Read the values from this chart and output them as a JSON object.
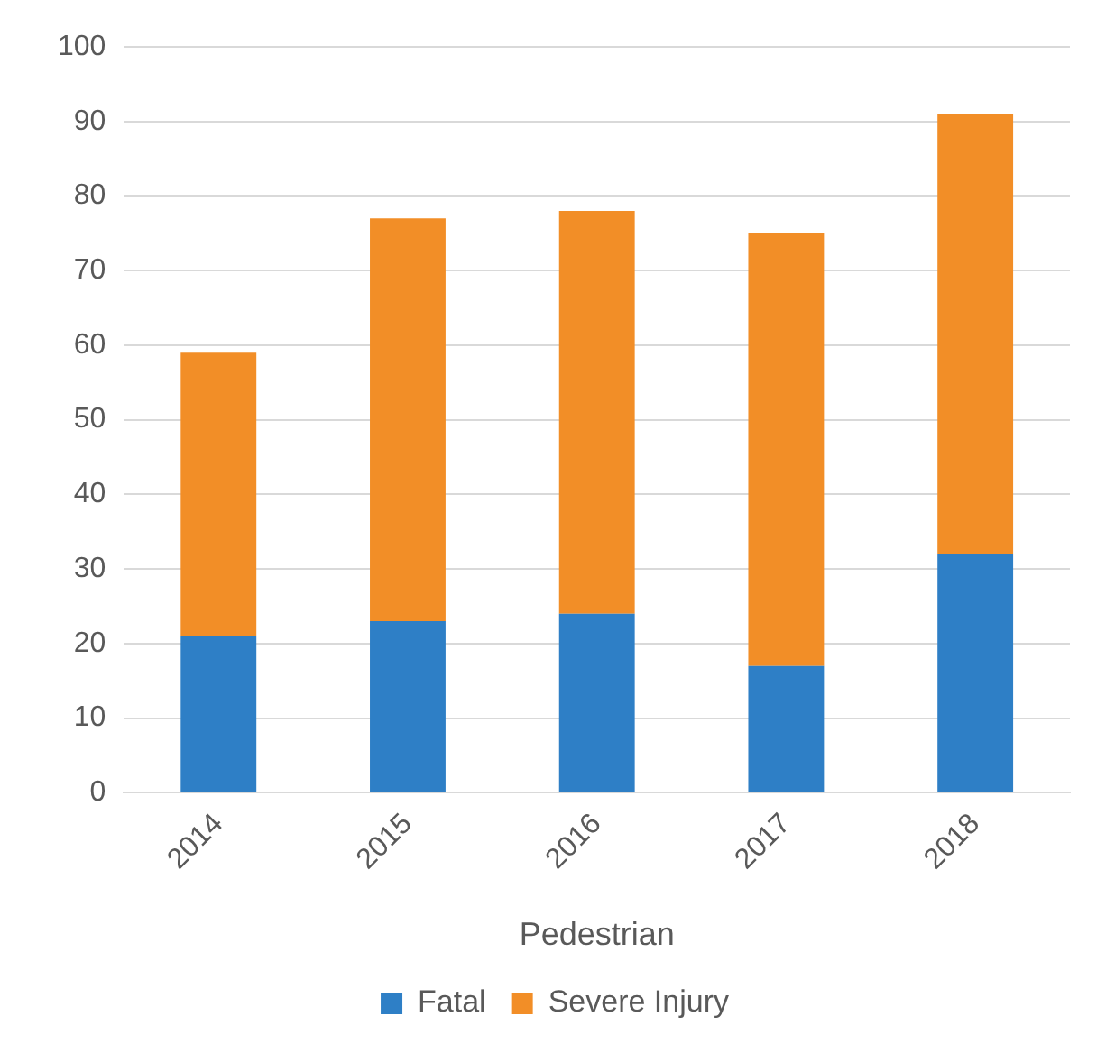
{
  "chart_data": {
    "type": "bar",
    "xlabel": "Pedestrian",
    "categories": [
      "2014",
      "2015",
      "2016",
      "2017",
      "2018"
    ],
    "series": [
      {
        "name": "Fatal",
        "color": "#2e7fc6",
        "values": [
          21,
          23,
          24,
          17,
          32
        ]
      },
      {
        "name": "Severe Injury",
        "color": "#f28e27",
        "values": [
          38,
          54,
          54,
          58,
          59
        ]
      }
    ],
    "stacked": true,
    "ylim": [
      0,
      100
    ],
    "yticks": [
      0,
      10,
      20,
      30,
      40,
      50,
      60,
      70,
      80,
      90,
      100
    ],
    "grid": "y",
    "legend": "bottom"
  }
}
